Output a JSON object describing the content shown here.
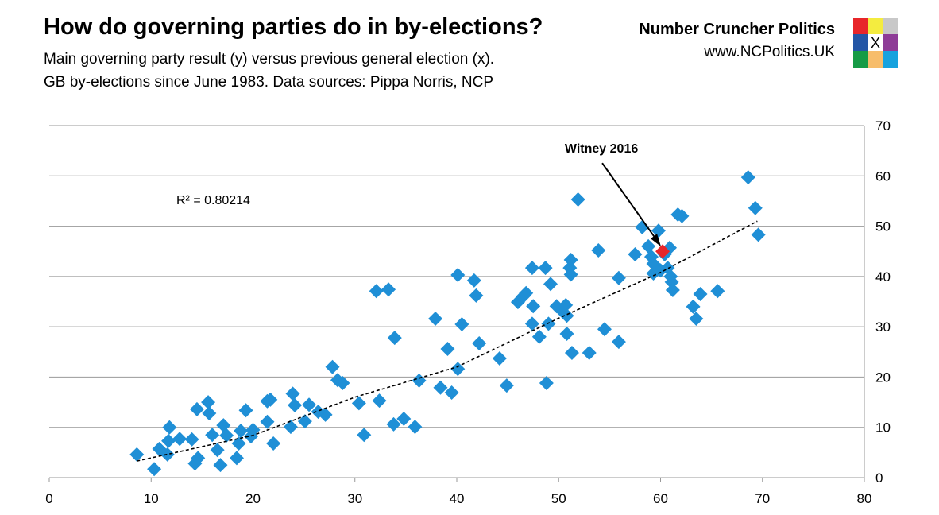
{
  "header": {
    "title": "How do governing parties do in by-elections?",
    "subtitle_1": "Main governing party result (y) versus previous general election (x).",
    "subtitle_2": "GB by-elections since June 1983. Data sources: Pippa Norris, NCP",
    "brand": "Number Cruncher Politics",
    "website": "www.NCPolitics.UK",
    "logo_mark": "X"
  },
  "chart_data": {
    "type": "scatter",
    "xlim": [
      0,
      80
    ],
    "xticks": [
      0,
      10,
      20,
      30,
      40,
      50,
      60,
      70,
      80
    ],
    "ylim": [
      0,
      70
    ],
    "yticks": [
      0,
      10,
      20,
      30,
      40,
      50,
      60,
      70
    ],
    "grid": true,
    "color": "#1f8fd6",
    "annotation": "R² = 0.80214",
    "x": [
      8.6,
      10.3,
      10.8,
      11.6,
      11.8,
      11.7,
      12.8,
      14.0,
      14.5,
      14.3,
      14.6,
      15.6,
      15.7,
      16.0,
      16.5,
      16.8,
      17.1,
      17.4,
      18.4,
      18.6,
      18.8,
      19.3,
      19.8,
      20.0,
      21.4,
      21.4,
      21.7,
      22.0,
      23.9,
      23.7,
      24.1,
      25.1,
      25.5,
      26.4,
      27.1,
      27.8,
      28.3,
      28.8,
      30.4,
      30.9,
      32.1,
      32.4,
      33.3,
      33.8,
      33.9,
      34.8,
      35.9,
      36.3,
      37.9,
      38.4,
      39.1,
      39.5,
      40.1,
      40.1,
      40.5,
      41.7,
      41.9,
      42.2,
      44.2,
      44.9,
      46.0,
      46.5,
      46.8,
      47.4,
      47.5,
      47.4,
      48.1,
      48.7,
      49.0,
      48.8,
      49.2,
      49.8,
      50.4,
      50.7,
      50.8,
      50.8,
      51.1,
      51.2,
      51.2,
      51.3,
      51.9,
      53.0,
      53.9,
      54.5,
      55.9,
      55.9,
      57.5,
      58.2,
      58.8,
      59.1,
      59.3,
      59.3,
      59.8,
      60.4,
      60.0,
      60.7,
      60.9,
      61.0,
      61.1,
      61.2,
      61.7,
      62.1,
      63.2,
      63.5,
      63.9,
      65.6,
      68.6,
      69.3,
      69.6
    ],
    "y": [
      4.6,
      1.7,
      5.7,
      4.6,
      10.0,
      7.3,
      7.7,
      7.6,
      13.6,
      2.8,
      3.9,
      15.0,
      12.8,
      8.5,
      5.5,
      2.5,
      10.4,
      8.4,
      3.9,
      6.8,
      9.3,
      13.4,
      8.2,
      9.5,
      11.1,
      15.2,
      15.5,
      6.8,
      16.7,
      10.1,
      14.4,
      11.2,
      14.5,
      13.1,
      12.5,
      22.0,
      19.4,
      18.8,
      14.8,
      8.5,
      37.1,
      15.3,
      37.4,
      10.6,
      27.8,
      11.7,
      10.1,
      19.3,
      31.6,
      17.9,
      25.6,
      16.9,
      40.3,
      21.6,
      30.5,
      39.2,
      36.2,
      26.7,
      23.7,
      18.3,
      34.9,
      36.0,
      36.7,
      41.7,
      34.1,
      30.6,
      28.0,
      41.7,
      30.6,
      18.8,
      38.5,
      34.1,
      33.0,
      34.3,
      32.2,
      28.6,
      41.7,
      43.3,
      40.4,
      24.8,
      55.3,
      24.8,
      45.2,
      29.5,
      27.0,
      39.7,
      44.4,
      49.8,
      46.0,
      43.9,
      42.5,
      40.6,
      49.1,
      44.4,
      41.2,
      41.7,
      45.7,
      40.0,
      38.9,
      37.3,
      52.3,
      52.0,
      34.0,
      31.6,
      36.5,
      37.1,
      59.7,
      53.6,
      48.3
    ],
    "highlight": {
      "label": "Witney 2016",
      "x": 60.2,
      "y": 45,
      "color": "#e8262a"
    },
    "trendline": {
      "x": [
        8.6,
        20,
        30,
        40,
        50,
        60,
        69.5
      ],
      "y": [
        3.3,
        8.4,
        16.0,
        22.0,
        31.7,
        40.8,
        51.0
      ]
    }
  }
}
